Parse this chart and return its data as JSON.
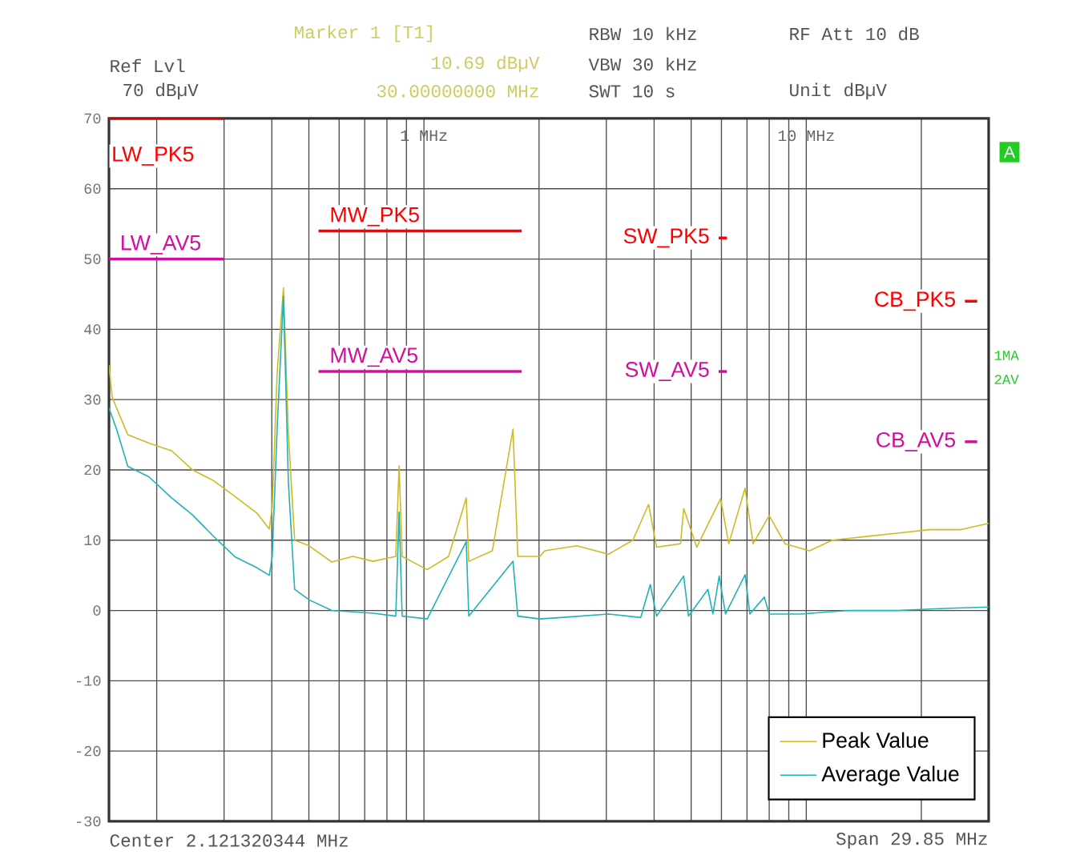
{
  "chart_data": {
    "type": "line",
    "log": "x",
    "xlim": [
      0.15,
      30
    ],
    "ylim": [
      -30,
      70
    ],
    "xticks": [
      {
        "value": 0.2,
        "label": null
      },
      {
        "value": 0.3,
        "label": null
      },
      {
        "value": 0.4,
        "label": null
      },
      {
        "value": 0.5,
        "label": null
      },
      {
        "value": 0.6,
        "label": null
      },
      {
        "value": 0.7,
        "label": null
      },
      {
        "value": 0.8,
        "label": null
      },
      {
        "value": 0.9,
        "label": null
      },
      {
        "value": 1,
        "label": "1 MHz"
      },
      {
        "value": 2,
        "label": null
      },
      {
        "value": 3,
        "label": null
      },
      {
        "value": 4,
        "label": null
      },
      {
        "value": 5,
        "label": null
      },
      {
        "value": 6,
        "label": null
      },
      {
        "value": 7,
        "label": null
      },
      {
        "value": 8,
        "label": null
      },
      {
        "value": 9,
        "label": null
      },
      {
        "value": 10,
        "label": "10 MHz"
      },
      {
        "value": 20,
        "label": null
      }
    ],
    "yticks": [
      -30,
      -20,
      -10,
      0,
      10,
      20,
      30,
      40,
      50,
      60,
      70
    ],
    "grid": true,
    "legend": "bottom right",
    "line_style": "solid",
    "annotations": [
      "Ref Lvl",
      "70 dBµV",
      "Marker 1 [T1]",
      "10.69 dBµV",
      "30.00000000 MHz",
      "RBW 10 kHz",
      "VBW 30 kHz",
      "SWT 10 s",
      "RF Att 10 dB",
      "Unit dBµV",
      "A",
      "1MA",
      "2AV",
      "Center 2.121320344 MHz",
      "Span 29.85 MHz"
    ],
    "series": [
      {
        "name": "Peak Value",
        "color": "#cdbb22",
        "x": [
          0.15,
          0.153,
          0.168,
          0.191,
          0.219,
          0.248,
          0.281,
          0.321,
          0.365,
          0.394,
          0.401,
          0.413,
          0.429,
          0.442,
          0.459,
          0.501,
          0.574,
          0.651,
          0.737,
          0.844,
          0.861,
          0.877,
          1.02,
          1.16,
          1.29,
          1.31,
          1.51,
          1.71,
          1.76,
          2.01,
          2.07,
          2.51,
          3.04,
          3.52,
          3.87,
          4.06,
          4.69,
          4.78,
          5.17,
          5.97,
          6.27,
          6.92,
          7.26,
          8.0,
          8.8,
          10.2,
          11.7,
          14.2,
          17.3,
          21.0,
          25.4,
          30
        ],
        "values": [
          34.9,
          30.3,
          25,
          23.8,
          22.7,
          20,
          18.5,
          16.2,
          13.9,
          11.6,
          14.7,
          33.7,
          45.9,
          25.2,
          10,
          9.2,
          6.9,
          7.7,
          7,
          7.7,
          20.6,
          7.7,
          5.8,
          7.7,
          16,
          7,
          8.5,
          25.8,
          7.7,
          7.7,
          8.5,
          9.2,
          8,
          10,
          15.1,
          9,
          9.5,
          14.5,
          9,
          15.9,
          9.5,
          17.4,
          9.5,
          13.5,
          9.5,
          8.5,
          10,
          10.5,
          11,
          11.5,
          11.5,
          12.4
        ]
      },
      {
        "name": "Average Value",
        "color": "#22b2b6",
        "x": [
          0.15,
          0.157,
          0.168,
          0.191,
          0.219,
          0.248,
          0.281,
          0.321,
          0.365,
          0.394,
          0.401,
          0.413,
          0.429,
          0.442,
          0.459,
          0.501,
          0.574,
          0.737,
          0.844,
          0.861,
          0.877,
          1.02,
          1.29,
          1.31,
          1.71,
          1.76,
          2.01,
          2.28,
          3.04,
          3.69,
          3.91,
          4.06,
          4.78,
          4.92,
          5.53,
          5.7,
          5.92,
          6.15,
          6.92,
          7.12,
          7.77,
          8.0,
          9.69,
          12.9,
          17.3,
          23.1,
          30
        ],
        "values": [
          28.8,
          25.8,
          20.5,
          19,
          16,
          13.6,
          10.6,
          7.6,
          6.1,
          5,
          7.6,
          25.8,
          44.7,
          18.2,
          3,
          1.5,
          0,
          -0.4,
          -0.8,
          14,
          -0.8,
          -1.2,
          9.8,
          -0.8,
          7,
          -0.8,
          -1.2,
          -1,
          -0.5,
          -1,
          3.7,
          -0.8,
          4.9,
          -0.8,
          3,
          -0.5,
          4.9,
          -0.5,
          5.1,
          -0.5,
          1.9,
          -0.5,
          -0.5,
          0,
          0,
          0.3,
          0.5
        ]
      },
      {
        "name": "LW_PK5",
        "color": "#ff0000",
        "x": [
          0.15,
          0.3
        ],
        "values": [
          70,
          70
        ]
      },
      {
        "name": "LW_AV5",
        "color": "#d0109a",
        "x": [
          0.15,
          0.3
        ],
        "values": [
          50,
          50
        ]
      },
      {
        "name": "MW_PK5",
        "color": "#ff0000",
        "x": [
          0.53,
          1.8
        ],
        "values": [
          54,
          54
        ]
      },
      {
        "name": "MW_AV5",
        "color": "#d0109a",
        "x": [
          0.53,
          1.8
        ],
        "values": [
          34,
          34
        ]
      },
      {
        "name": "SW_PK5",
        "color": "#ff0000",
        "x": [
          5.9,
          6.2
        ],
        "values": [
          53,
          53
        ]
      },
      {
        "name": "SW_AV5",
        "color": "#d0109a",
        "x": [
          5.9,
          6.2
        ],
        "values": [
          34,
          34
        ]
      },
      {
        "name": "CB_PK5",
        "color": "#ff0000",
        "x": [
          26,
          28
        ],
        "values": [
          44,
          44
        ]
      },
      {
        "name": "CB_AV5",
        "color": "#d0109a",
        "x": [
          26,
          28
        ],
        "values": [
          24,
          24
        ]
      }
    ]
  }
}
